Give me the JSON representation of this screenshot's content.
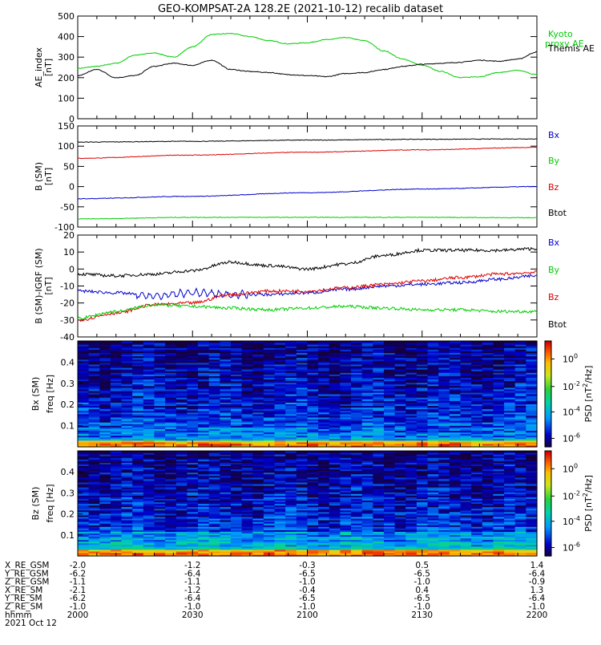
{
  "title": "GEO-KOMPSAT-2A 128.2E (2021-10-12) recalib dataset",
  "colors": {
    "black": "#000000",
    "green": "#00cc00",
    "red": "#dd0000",
    "blue": "#0000cc"
  },
  "chart_data": [
    {
      "type": "line",
      "ylabel": "AE_index [nT]",
      "ylim": [
        0,
        500
      ],
      "yticks": [
        "0",
        "100",
        "200",
        "300",
        "400",
        "500"
      ],
      "legend": [
        "Kyoto proxy AE",
        "Themis AE"
      ],
      "series": [
        {
          "name": "Kyoto proxy AE",
          "color": "#00cc00",
          "x": [
            0,
            5,
            10,
            15,
            20,
            25,
            30,
            35,
            40,
            45,
            50,
            55,
            60,
            65,
            70,
            75,
            80,
            85,
            90,
            95,
            100,
            105,
            110,
            115,
            120
          ],
          "values": [
            245,
            255,
            270,
            310,
            320,
            300,
            350,
            410,
            415,
            400,
            380,
            365,
            370,
            385,
            395,
            380,
            330,
            290,
            260,
            230,
            200,
            205,
            225,
            235,
            215
          ]
        },
        {
          "name": "Themis AE",
          "color": "#000000",
          "x": [
            0,
            5,
            10,
            15,
            20,
            25,
            30,
            35,
            40,
            45,
            50,
            55,
            60,
            65,
            70,
            75,
            80,
            85,
            90,
            95,
            100,
            105,
            110,
            115,
            120
          ],
          "values": [
            210,
            240,
            200,
            210,
            255,
            270,
            260,
            285,
            240,
            230,
            225,
            215,
            210,
            205,
            220,
            225,
            240,
            255,
            265,
            270,
            275,
            285,
            280,
            290,
            325
          ]
        }
      ]
    },
    {
      "type": "line",
      "ylabel": "B (SM) [nT]",
      "ylim": [
        -100,
        150
      ],
      "yticks": [
        "-100",
        "-50",
        "0",
        "50",
        "100",
        "150"
      ],
      "legend": [
        "Bx",
        "By",
        "Bz",
        "Btot"
      ],
      "series": [
        {
          "name": "Btot",
          "color": "#000000",
          "x": [
            0,
            30,
            60,
            90,
            120
          ],
          "values": [
            110,
            112,
            115,
            117,
            118
          ]
        },
        {
          "name": "Bz",
          "color": "#dd0000",
          "x": [
            0,
            30,
            60,
            90,
            120
          ],
          "values": [
            70,
            78,
            85,
            91,
            97
          ]
        },
        {
          "name": "Bx",
          "color": "#0000cc",
          "x": [
            0,
            30,
            60,
            90,
            120
          ],
          "values": [
            -30,
            -24,
            -15,
            -6,
            0
          ]
        },
        {
          "name": "By",
          "color": "#00cc00",
          "x": [
            0,
            30,
            60,
            90,
            120
          ],
          "values": [
            -80,
            -76,
            -76,
            -76,
            -77
          ]
        }
      ]
    },
    {
      "type": "line",
      "ylabel": "B (SM)-IGRF (SM) [nT]",
      "ylim": [
        -40,
        20
      ],
      "yticks": [
        "-40",
        "-30",
        "-20",
        "-10",
        "0",
        "10",
        "20"
      ],
      "legend": [
        "Bx",
        "By",
        "Bz",
        "Btot"
      ],
      "series": [
        {
          "name": "Btot",
          "color": "#000000",
          "x": [
            0,
            10,
            20,
            30,
            40,
            50,
            60,
            70,
            80,
            90,
            100,
            110,
            120
          ],
          "values": [
            -3,
            -4,
            -3,
            -1,
            4,
            2,
            0,
            3,
            8,
            11,
            11,
            11,
            12
          ]
        },
        {
          "name": "Bx",
          "color": "#0000cc",
          "x": [
            0,
            10,
            20,
            30,
            40,
            50,
            60,
            70,
            80,
            90,
            100,
            110,
            120
          ],
          "values": [
            -13,
            -14,
            -16,
            -14,
            -15,
            -15,
            -14,
            -12,
            -10,
            -9,
            -8,
            -6,
            -4
          ]
        },
        {
          "name": "Bz",
          "color": "#dd0000",
          "x": [
            0,
            10,
            20,
            30,
            40,
            50,
            60,
            70,
            80,
            90,
            100,
            110,
            120
          ],
          "values": [
            -30,
            -26,
            -21,
            -20,
            -15,
            -13,
            -13,
            -11,
            -9,
            -7,
            -5,
            -3,
            -2
          ]
        },
        {
          "name": "By",
          "color": "#00cc00",
          "x": [
            0,
            10,
            20,
            30,
            40,
            50,
            60,
            70,
            80,
            90,
            100,
            110,
            120
          ],
          "values": [
            -29,
            -25,
            -21,
            -22,
            -23,
            -24,
            -23,
            -22,
            -23,
            -24,
            -24,
            -25,
            -25
          ]
        }
      ]
    },
    {
      "type": "heatmap",
      "ylabel": "Bx (SM) freq [Hz]",
      "ylim": [
        0,
        0.5
      ],
      "yticks": [
        "0.1",
        "0.2",
        "0.3",
        "0.4"
      ],
      "colorbar_label": "PSD [nT^2/Hz]",
      "colorbar_ticks": [
        "10^0",
        "10^-2",
        "10^-4",
        "10^-6"
      ]
    },
    {
      "type": "heatmap",
      "ylabel": "Bz (SM) freq [Hz]",
      "ylim": [
        0,
        0.5
      ],
      "yticks": [
        "0.1",
        "0.2",
        "0.3",
        "0.4"
      ],
      "colorbar_label": "PSD [nT^2/Hz]",
      "colorbar_ticks": [
        "10^0",
        "10^-2",
        "10^-4",
        "10^-6"
      ]
    }
  ],
  "ephemeris": {
    "rows": [
      {
        "label": "X_RE_GSM",
        "values": [
          "-2.0",
          "-1.2",
          "-0.3",
          "0.5",
          "1.4"
        ]
      },
      {
        "label": "Y_RE_GSM",
        "values": [
          "-6.2",
          "-6.4",
          "-6.5",
          "-6.5",
          "-6.4"
        ]
      },
      {
        "label": "Z_RE_GSM",
        "values": [
          "-1.1",
          "-1.1",
          "-1.0",
          "-1.0",
          "-0.9"
        ]
      },
      {
        "label": "X_RE_SM",
        "values": [
          "-2.1",
          "-1.2",
          "-0.4",
          "0.4",
          "1.3"
        ]
      },
      {
        "label": "Y_RE_SM",
        "values": [
          "-6.2",
          "-6.4",
          "-6.5",
          "-6.5",
          "-6.4"
        ]
      },
      {
        "label": "Z_RE_SM",
        "values": [
          "-1.0",
          "-1.0",
          "-1.0",
          "-1.0",
          "-1.0"
        ]
      },
      {
        "label": "hhmm",
        "values": [
          "2000",
          "2030",
          "2100",
          "2130",
          "2200"
        ]
      }
    ],
    "date": "2021 Oct 12"
  }
}
